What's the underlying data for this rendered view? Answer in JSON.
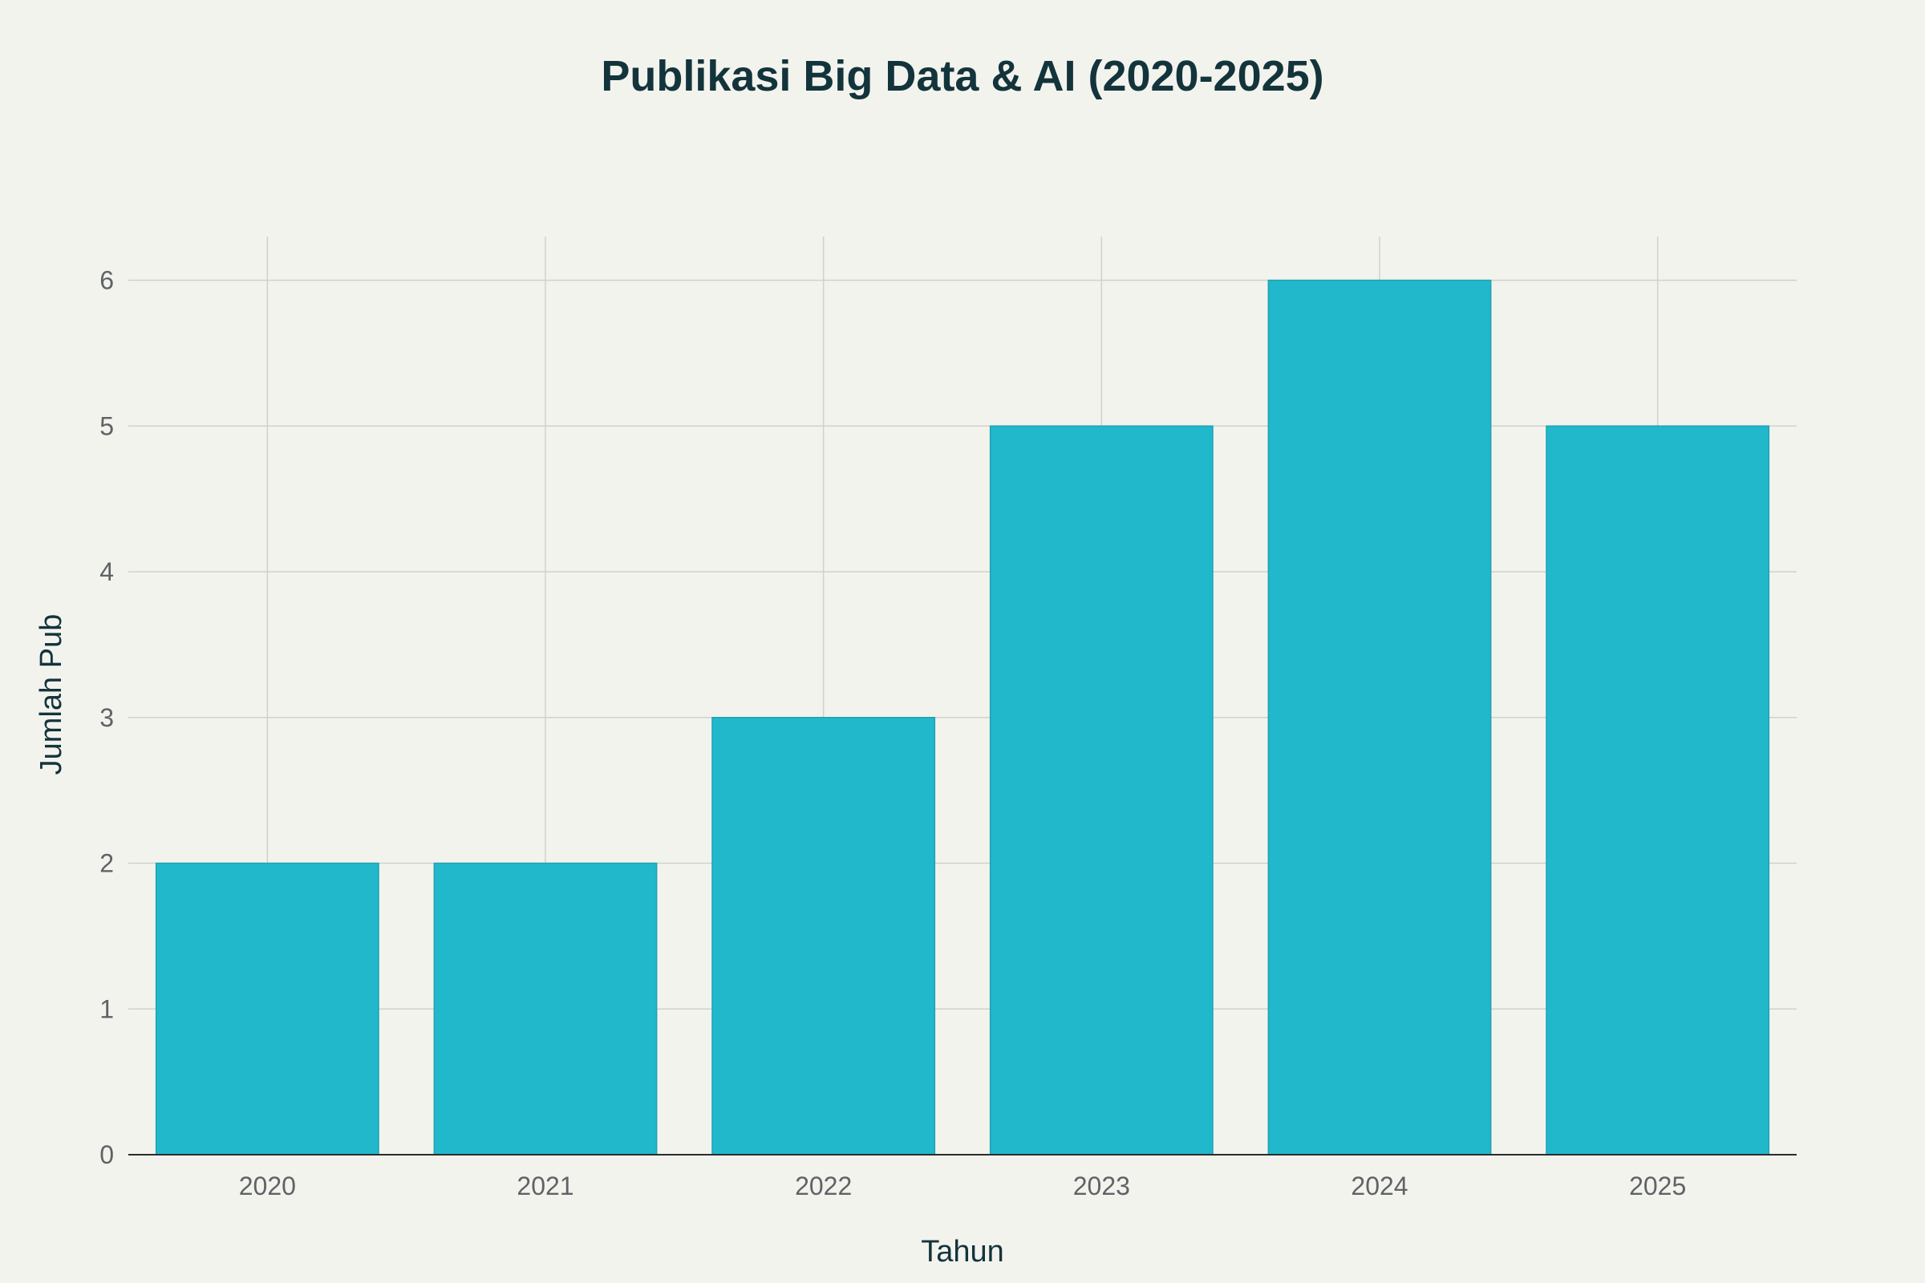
{
  "chart_data": {
    "type": "bar",
    "title": "Publikasi Big Data & AI (2020-2025)",
    "xlabel": "Tahun",
    "ylabel": "Jumlah Pub",
    "categories": [
      "2020",
      "2021",
      "2022",
      "2023",
      "2024",
      "2025"
    ],
    "values": [
      2,
      2,
      3,
      5,
      6,
      5
    ],
    "ylim": [
      0,
      6.3
    ],
    "yticks": [
      0,
      1,
      2,
      3,
      4,
      5,
      6
    ],
    "grid": true,
    "colors": {
      "bar": "#21b8cc",
      "background": "#f3f3ee",
      "title": "#13343b"
    }
  }
}
